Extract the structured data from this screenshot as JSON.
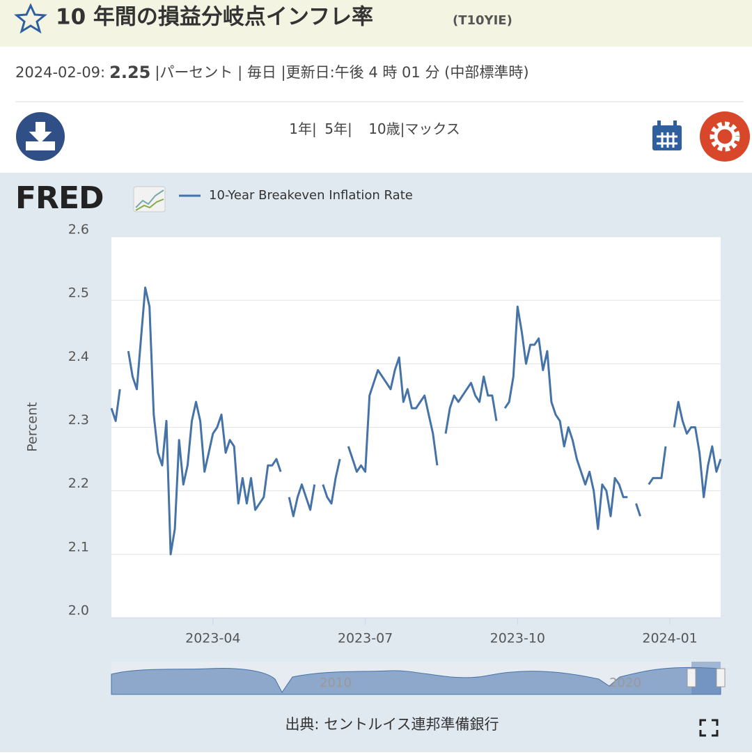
{
  "header": {
    "title": "10 年間の損益分岐点インフレ率",
    "series_id": "(T10YIE)"
  },
  "meta": {
    "date": "2024-02-09:",
    "value": "2.25",
    "details": "|パーセント | 毎日 |更新日:午後 4 時 01 分 (中部標準時)"
  },
  "range_buttons": [
    "1年|",
    "5年|",
    "10歳|マックス"
  ],
  "logo": "FRED",
  "chart_data": {
    "type": "line",
    "ylabel": "Percent",
    "series": [
      {
        "name": "10-Year Breakeven Inflation Rate",
        "color": "#4572a7",
        "values": [
          2.33,
          2.31,
          2.36,
          null,
          2.42,
          2.38,
          2.36,
          2.44,
          2.52,
          2.49,
          2.32,
          2.26,
          2.24,
          2.31,
          2.1,
          2.14,
          2.28,
          2.21,
          2.24,
          2.31,
          2.34,
          2.31,
          2.23,
          2.26,
          2.29,
          2.3,
          2.32,
          2.26,
          2.28,
          2.27,
          2.18,
          2.22,
          2.18,
          2.22,
          2.17,
          2.18,
          2.19,
          2.24,
          2.24,
          2.25,
          2.23,
          null,
          2.19,
          2.16,
          2.19,
          2.21,
          2.19,
          2.17,
          2.21,
          null,
          2.21,
          2.19,
          2.18,
          2.22,
          2.25,
          null,
          2.27,
          2.25,
          2.23,
          2.24,
          2.23,
          2.35,
          2.37,
          2.39,
          2.38,
          2.37,
          2.36,
          2.39,
          2.41,
          2.34,
          2.36,
          2.33,
          2.33,
          2.34,
          2.35,
          2.32,
          2.29,
          2.24,
          null,
          2.29,
          2.33,
          2.35,
          2.34,
          2.35,
          2.36,
          2.37,
          2.35,
          2.34,
          2.38,
          2.35,
          2.35,
          2.31,
          null,
          2.33,
          2.34,
          2.38,
          2.49,
          2.45,
          2.4,
          2.43,
          2.43,
          2.44,
          2.39,
          2.42,
          2.34,
          2.32,
          2.31,
          2.27,
          2.3,
          2.28,
          2.25,
          2.23,
          2.21,
          2.23,
          2.2,
          2.14,
          2.21,
          2.2,
          2.16,
          2.22,
          2.21,
          2.19,
          2.19,
          null,
          2.18,
          2.16,
          null,
          2.21,
          2.22,
          2.22,
          2.22,
          2.27,
          null,
          2.3,
          2.34,
          2.31,
          2.29,
          2.3,
          2.3,
          2.26,
          2.19,
          2.24,
          2.27,
          2.23,
          2.25
        ]
      }
    ],
    "xlim": [
      "2023-02",
      "2024-02"
    ],
    "xticks": [
      "2023-04",
      "2023-07",
      "2023-10",
      "2024-01"
    ],
    "ylim": [
      2,
      2.6
    ],
    "yticks": [
      {
        "value": 2,
        "label": "2.0"
      },
      2.1,
      2.2,
      2.3,
      2.4,
      2.5,
      2.6
    ],
    "grid": true
  },
  "navigator": {
    "labels": [
      "2010",
      "2020"
    ]
  },
  "footer": {
    "source": "出典: セントルイス連邦準備銀行"
  }
}
